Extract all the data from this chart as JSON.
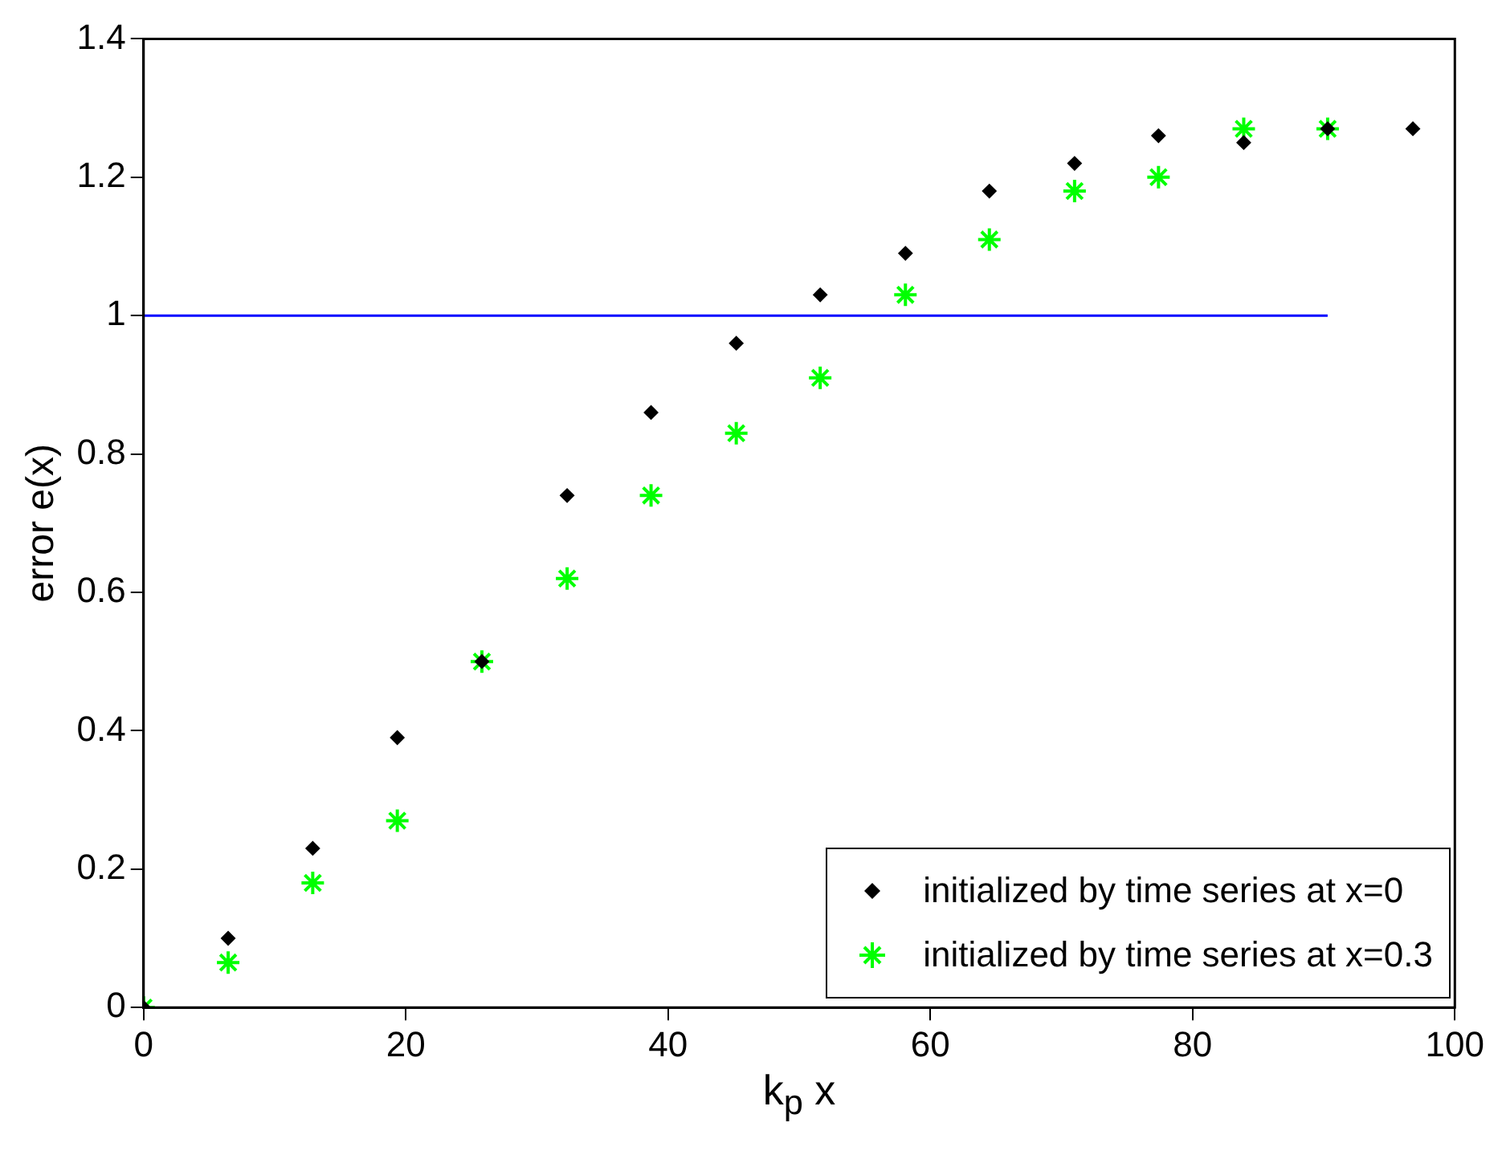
{
  "chart_data": {
    "type": "scatter",
    "xlabel": "k$_{p}$ x",
    "ylabel": "error e(x)",
    "xlim": [
      0,
      100
    ],
    "ylim": [
      0,
      1.4
    ],
    "xticks": [
      0,
      20,
      40,
      60,
      80,
      100
    ],
    "yticks": [
      0,
      0.2,
      0.4,
      0.6,
      0.8,
      1,
      1.2,
      1.4
    ],
    "grid": false,
    "legend": "bottom right",
    "series": [
      {
        "name": "initialized by time series at x=0",
        "color": "#000000",
        "marker": "diamond",
        "x": [
          0,
          6.45,
          12.9,
          19.35,
          25.8,
          32.3,
          38.7,
          45.2,
          51.6,
          58.1,
          64.5,
          71,
          77.4,
          83.9,
          90.3,
          96.8
        ],
        "values": [
          0,
          0.1,
          0.23,
          0.39,
          0.5,
          0.74,
          0.86,
          0.96,
          1.03,
          1.09,
          1.18,
          1.22,
          1.26,
          1.25,
          1.27,
          1.27
        ]
      },
      {
        "name": "initialized by time series at x=0.3",
        "color": "#00ff00",
        "marker": "cross",
        "x": [
          0,
          6.45,
          12.9,
          19.35,
          25.8,
          32.3,
          38.7,
          45.2,
          51.6,
          58.1,
          64.5,
          71,
          77.4,
          83.9,
          90.3
        ],
        "values": [
          0,
          0.065,
          0.18,
          0.27,
          0.5,
          0.62,
          0.74,
          0.83,
          0.91,
          1.03,
          1.11,
          1.18,
          1.2,
          1.27,
          1.27
        ]
      },
      {
        "type": "line",
        "color": "#0000ff",
        "marker": "none",
        "x": [
          0,
          90.3
        ],
        "values": [
          1,
          1
        ]
      }
    ]
  }
}
